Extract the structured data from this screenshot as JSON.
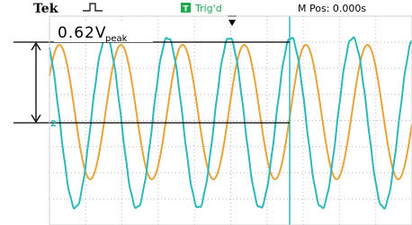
{
  "header": {
    "brand": "Tek",
    "trigger_icon": "T",
    "trigger_status": "Trig'd",
    "position": "M Pos: 0.000s"
  },
  "annotation": {
    "value": "0.62V",
    "subscript": "peak"
  },
  "channel_marker": "2"
}
